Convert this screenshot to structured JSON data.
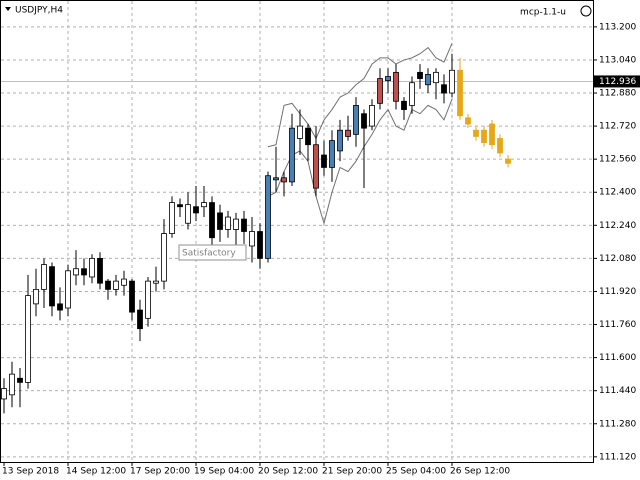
{
  "chart_data": {
    "type": "candlestick",
    "title": "USDJPY,H4",
    "indicator": "mcp-1.1-u",
    "annotation": "Satisfactory",
    "categories": [
      "13 Sep 2018",
      null,
      null,
      null,
      null,
      null,
      null,
      null,
      "14 Sep 12:00",
      null,
      null,
      null,
      null,
      null,
      null,
      null,
      "17 Sep 20:00",
      null,
      null,
      null,
      null,
      null,
      null,
      null,
      "19 Sep 04:00",
      null,
      null,
      null,
      null,
      null,
      null,
      null,
      "20 Sep 12:00",
      null,
      null,
      null,
      null,
      null,
      null,
      null,
      "21 Sep 20:00",
      null,
      null,
      null,
      null,
      null,
      null,
      null,
      "25 Sep 04:00",
      null,
      null,
      null,
      null,
      null,
      null,
      null,
      "26 Sep 12:00",
      null,
      null,
      null,
      null,
      null,
      null,
      null
    ],
    "open": [
      111.4,
      111.42,
      111.5,
      111.48,
      111.86,
      111.93,
      112.04,
      111.86,
      111.84,
      112.0,
      112.03,
      111.99,
      112.08,
      111.97,
      111.93,
      111.95,
      111.97,
      111.83,
      111.79,
      111.96,
      111.97,
      112.2,
      112.34,
      112.25,
      112.33,
      112.33,
      112.35,
      112.3,
      112.22,
      112.22,
      112.27,
      112.14,
      112.21,
      112.08,
      112.46,
      112.47,
      112.45,
      112.66,
      112.71,
      112.63,
      112.58,
      112.52,
      112.6,
      112.7,
      112.68,
      112.78,
      112.72,
      112.83,
      112.94,
      112.98,
      112.84,
      112.82,
      112.98,
      112.92,
      112.93,
      112.92,
      112.88,
      112.99,
      112.76,
      112.7,
      112.7,
      112.73,
      112.66,
      112.56
    ],
    "high": [
      111.5,
      111.58,
      111.55,
      112.0,
      112.03,
      112.08,
      112.06,
      111.94,
      112.05,
      112.12,
      112.08,
      112.1,
      112.11,
      111.98,
      112.0,
      112.02,
      111.98,
      111.88,
      111.99,
      112.04,
      112.27,
      112.38,
      112.37,
      112.4,
      112.43,
      112.43,
      112.38,
      112.34,
      112.31,
      112.3,
      112.31,
      112.28,
      112.25,
      112.5,
      112.62,
      112.5,
      112.78,
      112.8,
      112.73,
      112.72,
      112.65,
      112.7,
      112.75,
      112.77,
      112.86,
      112.8,
      112.85,
      113.0,
      113.0,
      113.02,
      112.86,
      112.96,
      113.02,
      113.0,
      113.0,
      112.97,
      113.07,
      113.05,
      112.78,
      112.72,
      112.72,
      112.75,
      112.68,
      112.58
    ],
    "low": [
      111.33,
      111.36,
      111.36,
      111.45,
      111.8,
      111.84,
      111.8,
      111.78,
      111.8,
      111.95,
      111.95,
      111.96,
      111.93,
      111.88,
      111.9,
      111.9,
      111.78,
      111.68,
      111.75,
      111.92,
      111.93,
      112.18,
      112.28,
      112.22,
      112.26,
      112.28,
      112.13,
      112.16,
      112.18,
      112.13,
      112.15,
      112.06,
      112.03,
      112.06,
      112.4,
      112.38,
      112.43,
      112.58,
      112.55,
      112.38,
      112.48,
      112.45,
      112.55,
      112.65,
      112.62,
      112.42,
      112.7,
      112.8,
      112.88,
      112.8,
      112.75,
      112.78,
      112.9,
      112.88,
      112.85,
      112.83,
      112.86,
      112.75,
      112.71,
      112.65,
      112.62,
      112.61,
      112.57,
      112.52
    ],
    "close": [
      111.45,
      111.52,
      111.48,
      111.9,
      111.93,
      112.05,
      111.85,
      111.83,
      112.02,
      112.03,
      112.0,
      112.08,
      111.96,
      111.93,
      111.97,
      111.98,
      111.82,
      111.74,
      111.97,
      111.97,
      112.2,
      112.35,
      112.33,
      112.34,
      112.3,
      112.35,
      112.18,
      112.22,
      112.28,
      112.27,
      112.21,
      112.21,
      112.08,
      112.48,
      112.47,
      112.45,
      112.71,
      112.72,
      112.63,
      112.42,
      112.52,
      112.65,
      112.7,
      112.67,
      112.82,
      112.71,
      112.82,
      112.95,
      112.96,
      112.84,
      112.8,
      112.93,
      112.95,
      112.97,
      112.98,
      112.88,
      112.99,
      112.77,
      112.73,
      112.67,
      112.64,
      112.63,
      112.59,
      112.54
    ],
    "colors": [
      "#ffffff",
      "#ffffff",
      "#000000",
      "#ffffff",
      "#ffffff",
      "#ffffff",
      "#000000",
      "#000000",
      "#ffffff",
      "#ffffff",
      "#000000",
      "#ffffff",
      "#000000",
      "#000000",
      "#ffffff",
      "#ffffff",
      "#000000",
      "#000000",
      "#ffffff",
      "#ffffff",
      "#ffffff",
      "#ffffff",
      "#000000",
      "#ffffff",
      "#000000",
      "#ffffff",
      "#000000",
      "#000000",
      "#ffffff",
      "#ffffff",
      "#000000",
      "#ffffff",
      "#000000",
      "#4a7fb5",
      "#4a7fb5",
      "#c0504d",
      "#4a7fb5",
      "#ffffff",
      "#000000",
      "#c0504d",
      "#000000",
      "#4a7fb5",
      "#4a7fb5",
      "#c0504d",
      "#4a7fb5",
      "#000000",
      "#ffffff",
      "#c0504d",
      "#4a7fb5",
      "#c0504d",
      "#000000",
      "#ffffff",
      "#000000",
      "#4a7fb5",
      "#ffffff",
      "#000000",
      "#ffffff",
      "#e6a817",
      "#e6a817",
      "#e6a817",
      "#e6a817",
      "#e6a817",
      "#e6a817",
      "#e6a817"
    ],
    "band": {
      "color": "#707070",
      "upper": [
        null,
        null,
        null,
        null,
        null,
        null,
        null,
        null,
        null,
        null,
        null,
        null,
        null,
        null,
        null,
        null,
        null,
        null,
        null,
        null,
        null,
        null,
        null,
        null,
        null,
        null,
        null,
        null,
        null,
        null,
        null,
        null,
        null,
        112.62,
        112.63,
        112.82,
        112.83,
        112.78,
        112.73,
        112.66,
        112.75,
        112.8,
        112.86,
        112.88,
        112.92,
        112.95,
        113.02,
        113.05,
        113.05,
        113.02,
        113.04,
        113.05,
        113.07,
        113.1,
        113.05,
        113.03,
        113.12,
        null,
        null,
        null,
        null,
        null,
        null,
        null
      ],
      "lower": [
        null,
        null,
        null,
        null,
        null,
        null,
        null,
        null,
        null,
        null,
        null,
        null,
        null,
        null,
        null,
        null,
        null,
        null,
        null,
        null,
        null,
        null,
        null,
        null,
        null,
        null,
        null,
        null,
        null,
        null,
        null,
        null,
        null,
        112.38,
        112.4,
        112.5,
        112.58,
        112.6,
        112.55,
        112.38,
        112.25,
        112.4,
        112.52,
        112.5,
        112.55,
        112.62,
        112.68,
        112.75,
        112.8,
        112.72,
        112.7,
        112.8,
        112.78,
        112.82,
        112.8,
        112.75,
        112.85,
        null,
        null,
        null,
        null,
        null,
        null,
        null
      ]
    },
    "current_price": {
      "value": 112.936,
      "label": "112.936"
    },
    "ylim": [
      111.095,
      113.33
    ],
    "yticks": [
      {
        "value": 113.2,
        "label": "113.200"
      },
      {
        "value": 113.04,
        "label": "113.040"
      },
      {
        "value": 112.88,
        "label": "112.880"
      },
      {
        "value": 112.72,
        "label": "112.720"
      },
      {
        "value": 112.56,
        "label": "112.560"
      },
      {
        "value": 112.4,
        "label": "112.400"
      },
      {
        "value": 112.24,
        "label": "112.240"
      },
      {
        "value": 112.08,
        "label": "112.080"
      },
      {
        "value": 111.92,
        "label": "111.920"
      },
      {
        "value": 111.76,
        "label": "111.760"
      },
      {
        "value": 111.6,
        "label": "111.600"
      },
      {
        "value": 111.44,
        "label": "111.440"
      },
      {
        "value": 111.28,
        "label": "111.280"
      },
      {
        "value": 111.12,
        "label": "111.120"
      }
    ],
    "grid": true
  }
}
